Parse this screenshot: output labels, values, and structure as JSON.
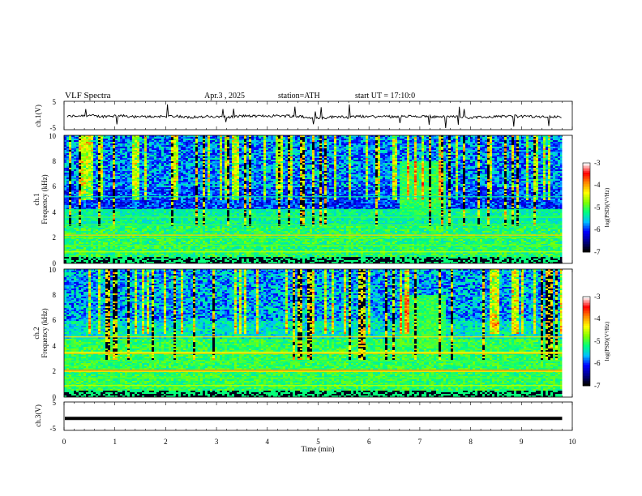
{
  "header": {
    "title": "VLF Spectra",
    "date": "Apr.3 , 2025",
    "station": "station=ATH",
    "start": "start UT =  17:10:0"
  },
  "colors": {
    "colormap": [
      "#000000",
      "#00008b",
      "#0000ff",
      "#00bfff",
      "#00ff7f",
      "#7fff00",
      "#ffff00",
      "#ff8c00",
      "#ff0000",
      "#ffffff"
    ]
  },
  "chart_data": [
    {
      "type": "line",
      "name": "ch.1",
      "ylabel": "ch.1(V)",
      "yticks": [
        "5",
        "-5"
      ],
      "ylim": [
        -5,
        5
      ],
      "xlim": [
        0,
        10
      ],
      "level": -0.4,
      "data_end_min": 9.8
    },
    {
      "type": "heatmap",
      "name": "ch.1 spectrogram",
      "ylabel_lines": [
        "ch.1",
        "Frequency (kHz)"
      ],
      "yticks": [
        "0",
        "2",
        "4",
        "6",
        "8",
        "10"
      ],
      "ylim": [
        0,
        10
      ],
      "xlim": [
        0,
        10
      ],
      "data_end_min": 9.8,
      "colorbar": {
        "label": "log(PSD)(V²/Hz)",
        "ticks": [
          "-3",
          "-4",
          "-5",
          "-6",
          "-7"
        ],
        "range": [
          -7,
          -3
        ]
      }
    },
    {
      "type": "heatmap",
      "name": "ch.2 spectrogram",
      "ylabel_lines": [
        "ch.2",
        "Frequency (kHz)"
      ],
      "yticks": [
        "0",
        "2",
        "4",
        "6",
        "8",
        "10"
      ],
      "ylim": [
        0,
        10
      ],
      "xlim": [
        0,
        10
      ],
      "data_end_min": 9.8,
      "colorbar": {
        "label": "log(PSD)(V²/Hz)",
        "ticks": [
          "-3",
          "-4",
          "-5",
          "-6",
          "-7"
        ],
        "range": [
          -7,
          -3
        ]
      }
    },
    {
      "type": "line",
      "name": "ch.3",
      "ylabel": "ch.3(V)",
      "yticks": [
        "5",
        "-5"
      ],
      "ylim": [
        -5,
        5
      ],
      "xlim": [
        0,
        10
      ],
      "level": -0.8,
      "data_end_min": 9.8,
      "xlabel": "Time (min)",
      "xticks": [
        "0",
        "1",
        "2",
        "3",
        "4",
        "5",
        "6",
        "7",
        "8",
        "9",
        "10"
      ]
    }
  ]
}
